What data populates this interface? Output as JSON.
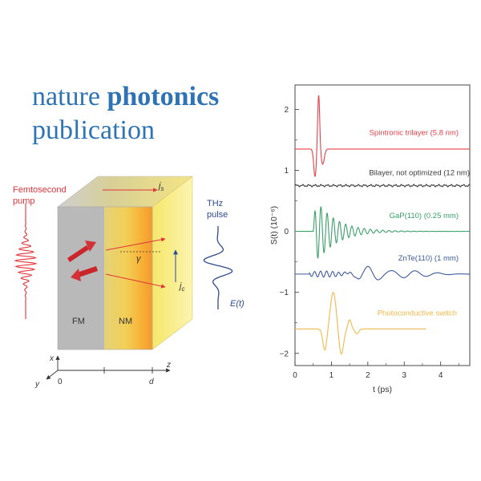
{
  "header": {
    "line1_regular": "nature ",
    "line1_bold": "photonics",
    "line2": "publication"
  },
  "schematic": {
    "pump_label_1": "Femtosecond",
    "pump_label_2": "pump",
    "thz_label_1": "THz",
    "thz_label_2": "pulse",
    "field_label": "E(t)",
    "js_label": "j",
    "js_sub": "s",
    "jc_label": "j",
    "jc_sub": "c",
    "gamma_label": "γ",
    "fm_label": "FM",
    "nm_label": "NM",
    "axis_x": "x",
    "axis_y": "y",
    "axis_z": "z",
    "origin": "0",
    "thickness": "d",
    "colors": {
      "pump": "#e0343a",
      "thz": "#2e4a8f",
      "fm": "#b9b9b9",
      "nm": "#f5e04a"
    }
  },
  "chart_data": {
    "type": "line",
    "xlabel": "t (ps)",
    "ylabel": "S(t) (10⁻⁶)",
    "xlim": [
      0,
      4.8
    ],
    "ylim": [
      -2.2,
      2.4
    ],
    "xticks": [
      "0",
      "1",
      "2",
      "3",
      "4"
    ],
    "xtick_values": [
      0,
      1,
      2,
      3,
      4
    ],
    "yticks": [
      "−2",
      "−1",
      "0",
      "1",
      "2"
    ],
    "ytick_values": [
      -2,
      -1,
      0,
      1,
      2
    ],
    "series": [
      {
        "name": "Spintronic trilayer (5.8 nm)",
        "color": "#e8404a",
        "offset": 1.35,
        "t_start": 0,
        "t_end": 4.8,
        "peak_t": 0.65,
        "peak_amplitude": 0.9,
        "trough_amplitude": -0.4
      },
      {
        "name": "Bilayer, not optimized (12 nm)",
        "color": "#3a3a3a",
        "offset": 0.75,
        "t_start": 0,
        "t_end": 4.8,
        "peak_t": 0.7,
        "peak_amplitude": 0.03,
        "trough_amplitude": -0.03
      },
      {
        "name": "GaP(110) (0.25 mm)",
        "color": "#3aa069",
        "offset": 0.0,
        "t_start": 0,
        "t_end": 4.8,
        "peak_t": 0.8,
        "peak_amplitude": 0.55,
        "trough_amplitude": -0.6
      },
      {
        "name": "ZnTe(110) (1 mm)",
        "color": "#3d5a9c",
        "offset": -0.7,
        "t_start": 0,
        "t_end": 4.8,
        "peak_t": 2.0,
        "peak_amplitude": 0.15,
        "trough_amplitude": -0.15
      },
      {
        "name": "Photoconductive switch",
        "color": "#f0b84a",
        "offset": -1.6,
        "t_start": 0,
        "t_end": 3.6,
        "peak_t": 1.05,
        "peak_amplitude": 0.6,
        "trough_amplitude": -0.45
      }
    ]
  }
}
